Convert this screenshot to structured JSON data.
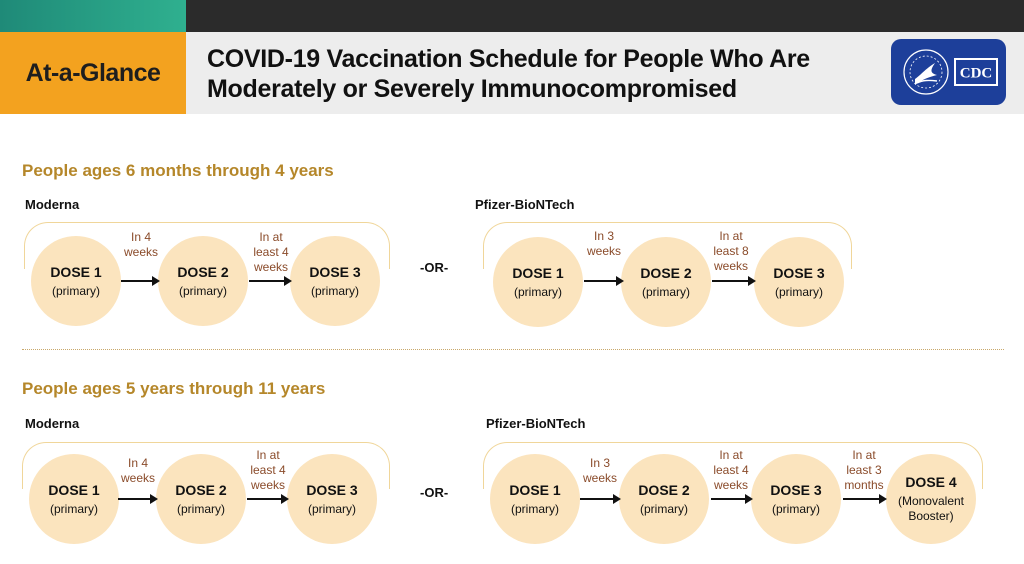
{
  "header": {
    "badge": "At-a-Glance",
    "title_line1": "COVID-19 Vaccination Schedule for People Who Are",
    "title_line2": "Moderately or Severely Immunocompromised",
    "logo_text": "CDC"
  },
  "colors": {
    "accent_orange": "#f3a21f",
    "section_gold": "#b5872a",
    "dose_fill": "#fbe4be",
    "interval_brown": "#8a4b2a",
    "cdc_blue": "#1d3f9a"
  },
  "or_label": "-OR-",
  "sections": [
    {
      "title": "People ages 6 months through 4 years",
      "schedules": [
        {
          "vendor": "Moderna",
          "doses": [
            {
              "name": "DOSE 1",
              "type": "(primary)"
            },
            {
              "name": "DOSE 2",
              "type": "(primary)"
            },
            {
              "name": "DOSE 3",
              "type": "(primary)"
            }
          ],
          "intervals": [
            [
              "In 4",
              "weeks"
            ],
            [
              "In at",
              "least 4",
              "weeks"
            ]
          ]
        },
        {
          "vendor": "Pfizer-BioNTech",
          "doses": [
            {
              "name": "DOSE 1",
              "type": "(primary)"
            },
            {
              "name": "DOSE 2",
              "type": "(primary)"
            },
            {
              "name": "DOSE 3",
              "type": "(primary)"
            }
          ],
          "intervals": [
            [
              "In 3",
              "weeks"
            ],
            [
              "In at",
              "least 8",
              "weeks"
            ]
          ]
        }
      ]
    },
    {
      "title": "People ages 5 years through 11 years",
      "schedules": [
        {
          "vendor": "Moderna",
          "doses": [
            {
              "name": "DOSE 1",
              "type": "(primary)"
            },
            {
              "name": "DOSE 2",
              "type": "(primary)"
            },
            {
              "name": "DOSE 3",
              "type": "(primary)"
            }
          ],
          "intervals": [
            [
              "In 4",
              "weeks"
            ],
            [
              "In at",
              "least 4",
              "weeks"
            ]
          ]
        },
        {
          "vendor": "Pfizer-BioNTech",
          "doses": [
            {
              "name": "DOSE 1",
              "type": "(primary)"
            },
            {
              "name": "DOSE 2",
              "type": "(primary)"
            },
            {
              "name": "DOSE 3",
              "type": "(primary)"
            },
            {
              "name": "DOSE 4",
              "type": "(Monovalent",
              "type2": "Booster)"
            }
          ],
          "intervals": [
            [
              "In 3",
              "weeks"
            ],
            [
              "In at",
              "least 4",
              "weeks"
            ],
            [
              "In at",
              "least 3",
              "months"
            ]
          ]
        }
      ]
    }
  ]
}
